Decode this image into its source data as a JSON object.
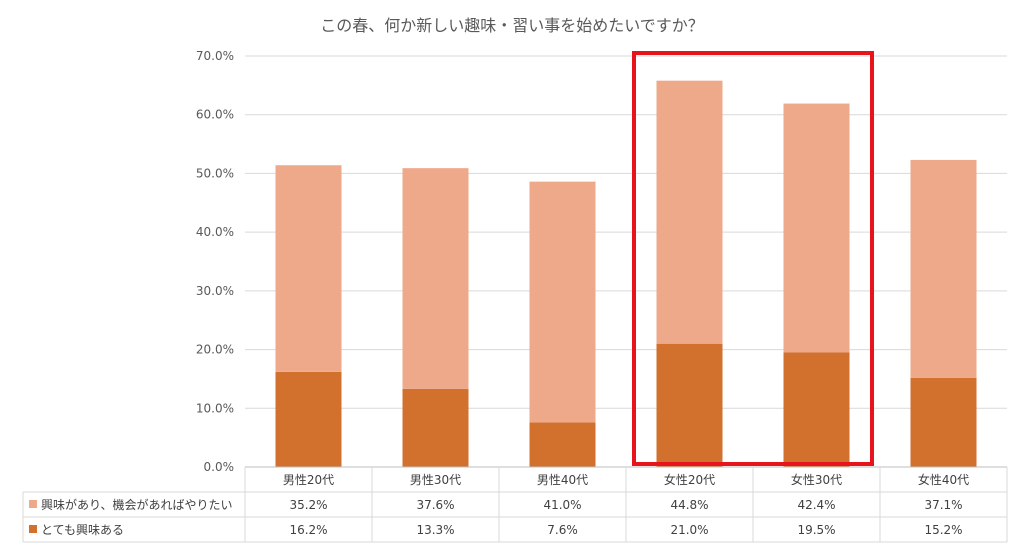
{
  "chart_data": {
    "type": "bar",
    "stacked": true,
    "title": "この春、何か新しい趣味・習い事を始めたいですか？",
    "categories": [
      "男性20代",
      "男性30代",
      "男性40代",
      "女性20代",
      "女性30代",
      "女性40代"
    ],
    "series": [
      {
        "name": "とても興味ある",
        "color": "#D2702D",
        "values": [
          16.2,
          13.3,
          7.6,
          21.0,
          19.5,
          15.2
        ]
      },
      {
        "name": "興味があり、機会があればやりたい",
        "color": "#EEA98A",
        "values": [
          35.2,
          37.6,
          41.0,
          44.8,
          42.4,
          37.1
        ]
      }
    ],
    "ylim": [
      0,
      70
    ],
    "yticks": [
      "0.0%",
      "10.0%",
      "20.0%",
      "30.0%",
      "40.0%",
      "50.0%",
      "60.0%",
      "70.0%"
    ],
    "grid": true,
    "data_table": {
      "rows": [
        {
          "label": "興味があり、機会があればやりたい",
          "color": "#EEA98A",
          "cells": [
            "35.2%",
            "37.6%",
            "41.0%",
            "44.8%",
            "42.4%",
            "37.1%"
          ]
        },
        {
          "label": "とても興味ある",
          "color": "#D2702D",
          "cells": [
            "16.2%",
            "13.3%",
            "7.6%",
            "21.0%",
            "19.5%",
            "15.2%"
          ]
        }
      ]
    },
    "highlight": {
      "categories": [
        "女性20代",
        "女性30代"
      ],
      "color": "#E8141C"
    }
  }
}
